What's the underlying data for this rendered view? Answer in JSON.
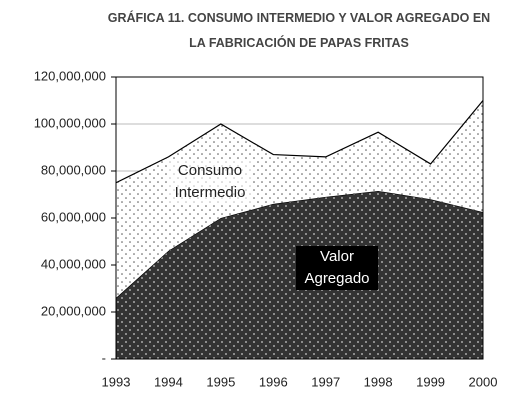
{
  "chart_data": {
    "type": "stacked_area",
    "title": "GRÁFICA 11. CONSUMO INTERMEDIO Y VALOR AGREGADO EN LA FABRICACIÓN DE PAPAS FRITAS",
    "categories": [
      "1993",
      "1994",
      "1995",
      "1996",
      "1997",
      "1998",
      "1999",
      "2000"
    ],
    "series": [
      {
        "name": "Valor Agregado",
        "color": "#333333",
        "values": [
          26000000,
          46000000,
          60000000,
          66000000,
          69000000,
          71500000,
          68000000,
          62500000
        ]
      },
      {
        "name": "Consumo Intermedio",
        "color": "#ffffff",
        "values": [
          49000000,
          40000000,
          40000000,
          21000000,
          17000000,
          25000000,
          15000000,
          47500000
        ]
      }
    ],
    "ylim": [
      0,
      120000000
    ],
    "yticks": [
      {
        "value": 0,
        "label": "-"
      },
      {
        "value": 20000000,
        "label": "20,000,000"
      },
      {
        "value": 40000000,
        "label": "40,000,000"
      },
      {
        "value": 60000000,
        "label": "60,000,000"
      },
      {
        "value": 80000000,
        "label": "80,000,000"
      },
      {
        "value": 100000000,
        "label": "100,000,000"
      },
      {
        "value": 120000000,
        "label": "120,000,000"
      }
    ],
    "grid": true
  }
}
